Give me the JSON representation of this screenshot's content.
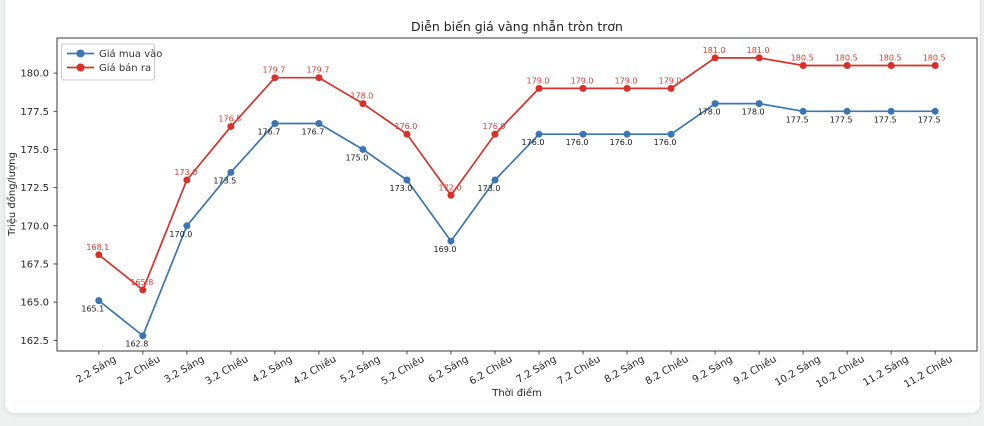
{
  "page": {
    "background_color": "#eff0f0",
    "card_color": "#ffffff"
  },
  "chart_data": {
    "type": "line",
    "title": "Diễn biến giá vàng nhẫn tròn trơn",
    "xlabel": "Thời điểm",
    "ylabel": "Triệu đồng/lượng",
    "categories": [
      "2.2 Sáng",
      "2.2 Chiều",
      "3.2 Sáng",
      "3.2 Chiều",
      "4.2 Sáng",
      "4.2 Chiều",
      "5.2 Sáng",
      "5.2 Chiều",
      "6.2 Sáng",
      "6.2 Chiều",
      "7.2 Sáng",
      "7.2 Chiều",
      "8.2 Sáng",
      "8.2 Chiều",
      "9.2 Sáng",
      "9.2 Chiều",
      "10.2 Sáng",
      "10.2 Chiều",
      "11.2 Sáng",
      "11.2 Chiều"
    ],
    "series": [
      {
        "name": "Giá mua vào",
        "color": "#3b76b2",
        "label_color": "#1a1a1a",
        "label_side": "below",
        "values": [
          165.1,
          162.8,
          170.0,
          173.5,
          176.7,
          176.7,
          175.0,
          173.0,
          169.0,
          173.0,
          176.0,
          176.0,
          176.0,
          176.0,
          178.0,
          178.0,
          177.5,
          177.5,
          177.5,
          177.5
        ]
      },
      {
        "name": "Giá bán ra",
        "color": "#d9312a",
        "label_color": "#dd3c31",
        "label_side": "above",
        "values": [
          168.1,
          165.8,
          173.0,
          176.5,
          179.7,
          179.7,
          178.0,
          176.0,
          172.0,
          176.0,
          179.0,
          179.0,
          179.0,
          179.0,
          181.0,
          181.0,
          180.5,
          180.5,
          180.5,
          180.5
        ]
      }
    ],
    "yticks": [
      162.5,
      165.0,
      167.5,
      170.0,
      172.5,
      175.0,
      177.5,
      180.0
    ],
    "ylim": [
      161.8,
      182.3
    ],
    "grid": false,
    "legend_position": "upper-left",
    "marker": "circle",
    "value_labels_decimals": 1
  }
}
